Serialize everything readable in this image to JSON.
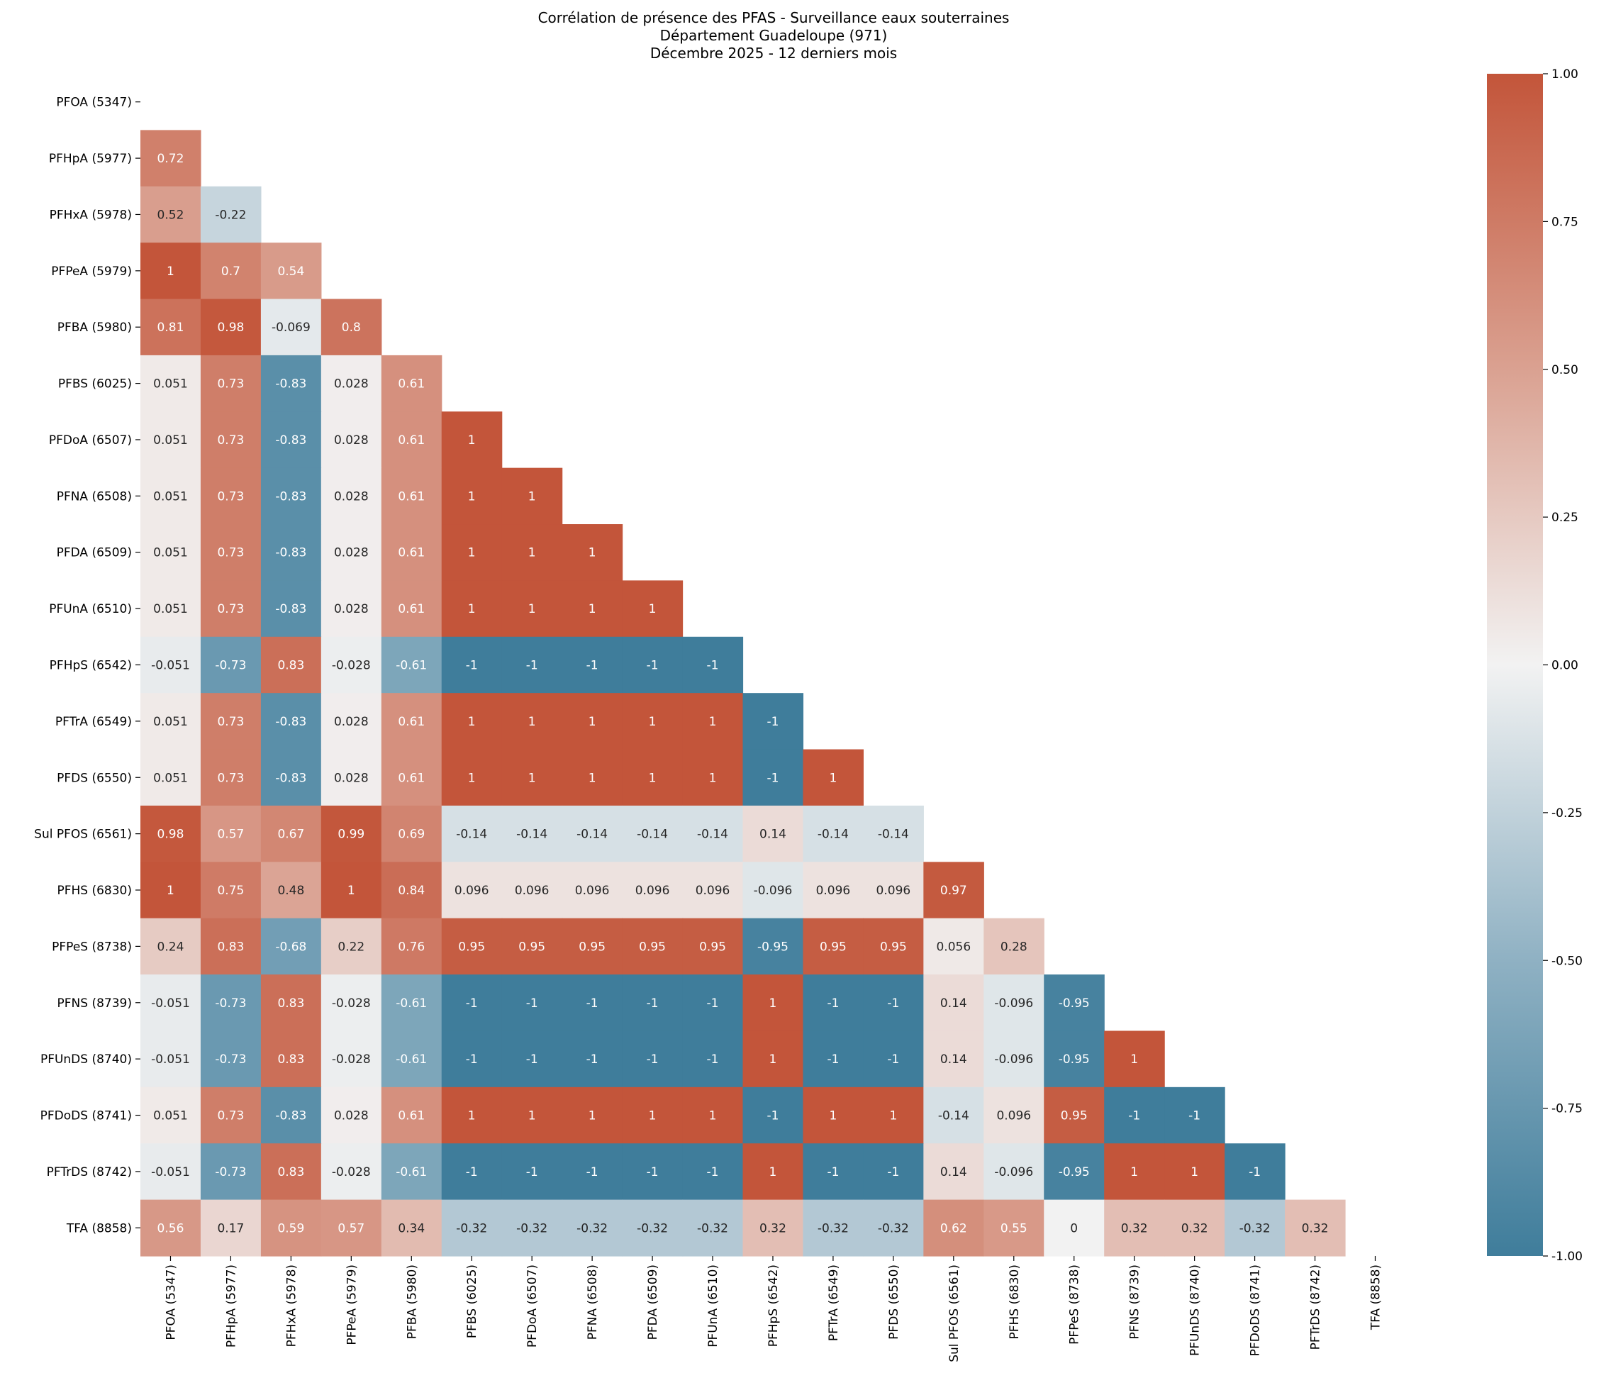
{
  "chart_data": {
    "type": "heatmap",
    "title": [
      "Corrélation de présence des PFAS - Surveillance eaux souterraines",
      "Département Guadeloupe (971)",
      "Décembre 2025 - 12 derniers mois"
    ],
    "labels": [
      "PFOA (5347)",
      "PFHpA (5977)",
      "PFHxA (5978)",
      "PFPeA (5979)",
      "PFBA (5980)",
      "PFBS (6025)",
      "PFDoA (6507)",
      "PFNA (6508)",
      "PFDA (6509)",
      "PFUnA (6510)",
      "PFHpS (6542)",
      "PFTrA (6549)",
      "PFDS (6550)",
      "Sul PFOS (6561)",
      "PFHS (6830)",
      "PFPeS (8738)",
      "PFNS (8739)",
      "PFUnDS (8740)",
      "PFDoDS (8741)",
      "PFTrDS (8742)",
      "TFA (8858)"
    ],
    "mask": "upper triangle incl. diagonal",
    "lower_triangle": [
      [],
      [
        0.72
      ],
      [
        0.52,
        -0.22
      ],
      [
        1,
        0.7,
        0.54
      ],
      [
        0.81,
        0.98,
        -0.069,
        0.8
      ],
      [
        0.051,
        0.73,
        -0.83,
        0.028,
        0.61
      ],
      [
        0.051,
        0.73,
        -0.83,
        0.028,
        0.61,
        1
      ],
      [
        0.051,
        0.73,
        -0.83,
        0.028,
        0.61,
        1,
        1
      ],
      [
        0.051,
        0.73,
        -0.83,
        0.028,
        0.61,
        1,
        1,
        1
      ],
      [
        0.051,
        0.73,
        -0.83,
        0.028,
        0.61,
        1,
        1,
        1,
        1
      ],
      [
        -0.051,
        -0.73,
        0.83,
        -0.028,
        -0.61,
        -1,
        -1,
        -1,
        -1,
        -1
      ],
      [
        0.051,
        0.73,
        -0.83,
        0.028,
        0.61,
        1,
        1,
        1,
        1,
        1,
        -1
      ],
      [
        0.051,
        0.73,
        -0.83,
        0.028,
        0.61,
        1,
        1,
        1,
        1,
        1,
        -1,
        1
      ],
      [
        0.98,
        0.57,
        0.67,
        0.99,
        0.69,
        -0.14,
        -0.14,
        -0.14,
        -0.14,
        -0.14,
        0.14,
        -0.14,
        -0.14
      ],
      [
        1,
        0.75,
        0.48,
        1,
        0.84,
        0.096,
        0.096,
        0.096,
        0.096,
        0.096,
        -0.096,
        0.096,
        0.096,
        0.97
      ],
      [
        0.24,
        0.83,
        -0.68,
        0.22,
        0.76,
        0.95,
        0.95,
        0.95,
        0.95,
        0.95,
        -0.95,
        0.95,
        0.95,
        0.056,
        0.28
      ],
      [
        -0.051,
        -0.73,
        0.83,
        -0.028,
        -0.61,
        -1,
        -1,
        -1,
        -1,
        -1,
        1,
        -1,
        -1,
        0.14,
        -0.096,
        -0.95
      ],
      [
        -0.051,
        -0.73,
        0.83,
        -0.028,
        -0.61,
        -1,
        -1,
        -1,
        -1,
        -1,
        1,
        -1,
        -1,
        0.14,
        -0.096,
        -0.95,
        1
      ],
      [
        0.051,
        0.73,
        -0.83,
        0.028,
        0.61,
        1,
        1,
        1,
        1,
        1,
        -1,
        1,
        1,
        -0.14,
        0.096,
        0.95,
        -1,
        -1
      ],
      [
        -0.051,
        -0.73,
        0.83,
        -0.028,
        -0.61,
        -1,
        -1,
        -1,
        -1,
        -1,
        1,
        -1,
        -1,
        0.14,
        -0.096,
        -0.95,
        1,
        1,
        -1
      ],
      [
        0.56,
        0.17,
        0.59,
        0.57,
        0.34,
        -0.32,
        -0.32,
        -0.32,
        -0.32,
        -0.32,
        0.32,
        -0.32,
        -0.32,
        0.62,
        0.55,
        0,
        0.32,
        0.32,
        -0.32,
        0.32
      ]
    ],
    "colorbar": {
      "range": [
        -1,
        1
      ],
      "ticks": [
        "-1.00",
        "-0.75",
        "-0.50",
        "-0.25",
        "0.00",
        "0.25",
        "0.50",
        "0.75",
        "1.00"
      ],
      "colors": {
        "low": "#3f7d9b",
        "mid": "#f2f2f2",
        "high": "#c3553a"
      }
    },
    "annotations": true
  }
}
